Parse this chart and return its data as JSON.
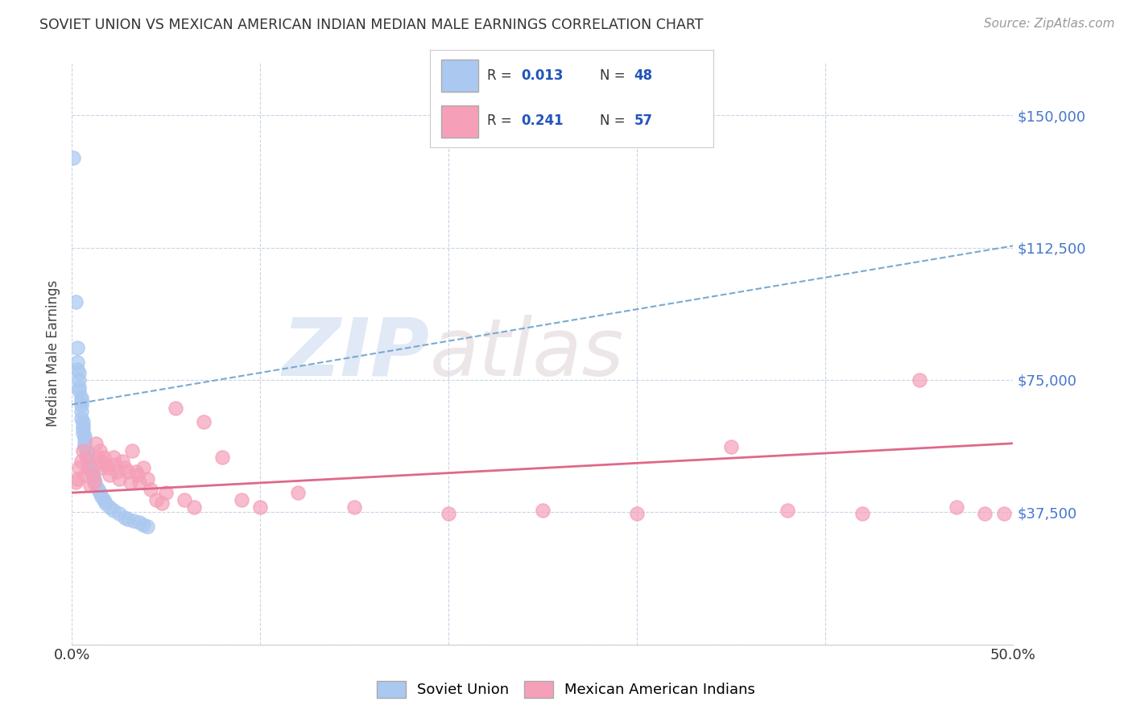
{
  "title": "SOVIET UNION VS MEXICAN AMERICAN INDIAN MEDIAN MALE EARNINGS CORRELATION CHART",
  "source": "Source: ZipAtlas.com",
  "ylabel": "Median Male Earnings",
  "y_ticks": [
    0,
    37500,
    75000,
    112500,
    150000
  ],
  "y_tick_labels": [
    "",
    "$37,500",
    "$75,000",
    "$112,500",
    "$150,000"
  ],
  "xmin": 0.0,
  "xmax": 0.5,
  "ymin": 0,
  "ymax": 165000,
  "watermark_zip": "ZIP",
  "watermark_atlas": "atlas",
  "blue_color": "#aac8f0",
  "pink_color": "#f5a0b8",
  "blue_line_color": "#7aaad0",
  "pink_line_color": "#e06888",
  "blue_scatter_edge": "#aac8f0",
  "pink_scatter_edge": "#f5a0b8",
  "soviet_x": [
    0.001,
    0.002,
    0.003,
    0.003,
    0.003,
    0.004,
    0.004,
    0.004,
    0.004,
    0.005,
    0.005,
    0.005,
    0.005,
    0.005,
    0.006,
    0.006,
    0.006,
    0.006,
    0.007,
    0.007,
    0.007,
    0.007,
    0.008,
    0.008,
    0.008,
    0.009,
    0.009,
    0.01,
    0.01,
    0.011,
    0.011,
    0.012,
    0.012,
    0.013,
    0.014,
    0.015,
    0.016,
    0.017,
    0.018,
    0.02,
    0.022,
    0.025,
    0.028,
    0.03,
    0.033,
    0.036,
    0.038,
    0.04
  ],
  "soviet_y": [
    138000,
    97000,
    84000,
    80000,
    78000,
    77000,
    75000,
    73000,
    72000,
    70000,
    69000,
    68000,
    66000,
    64000,
    63000,
    62000,
    61000,
    60000,
    59000,
    58000,
    57000,
    56000,
    55000,
    54000,
    53000,
    52000,
    51000,
    50000,
    49500,
    49000,
    48000,
    47000,
    46500,
    45000,
    44000,
    43000,
    42000,
    41000,
    40000,
    39000,
    38000,
    37000,
    36000,
    35500,
    35000,
    34500,
    34000,
    33500
  ],
  "mexican_x": [
    0.002,
    0.003,
    0.004,
    0.005,
    0.006,
    0.007,
    0.008,
    0.009,
    0.01,
    0.011,
    0.012,
    0.013,
    0.014,
    0.015,
    0.016,
    0.016,
    0.017,
    0.018,
    0.019,
    0.02,
    0.022,
    0.023,
    0.024,
    0.025,
    0.027,
    0.028,
    0.03,
    0.031,
    0.032,
    0.034,
    0.035,
    0.036,
    0.038,
    0.04,
    0.042,
    0.045,
    0.048,
    0.05,
    0.055,
    0.06,
    0.065,
    0.07,
    0.08,
    0.09,
    0.1,
    0.12,
    0.15,
    0.2,
    0.25,
    0.3,
    0.35,
    0.38,
    0.42,
    0.45,
    0.47,
    0.485,
    0.495
  ],
  "mexican_y": [
    46000,
    47000,
    50000,
    52000,
    55000,
    48000,
    53000,
    50000,
    45000,
    48000,
    46000,
    57000,
    53000,
    55000,
    52000,
    50000,
    53000,
    51000,
    50000,
    48000,
    53000,
    51000,
    49000,
    47000,
    52000,
    50000,
    49000,
    46000,
    55000,
    49000,
    48000,
    46000,
    50000,
    47000,
    44000,
    41000,
    40000,
    43000,
    67000,
    41000,
    39000,
    63000,
    53000,
    41000,
    39000,
    43000,
    39000,
    37000,
    38000,
    37000,
    56000,
    38000,
    37000,
    75000,
    39000,
    37000,
    37000
  ]
}
